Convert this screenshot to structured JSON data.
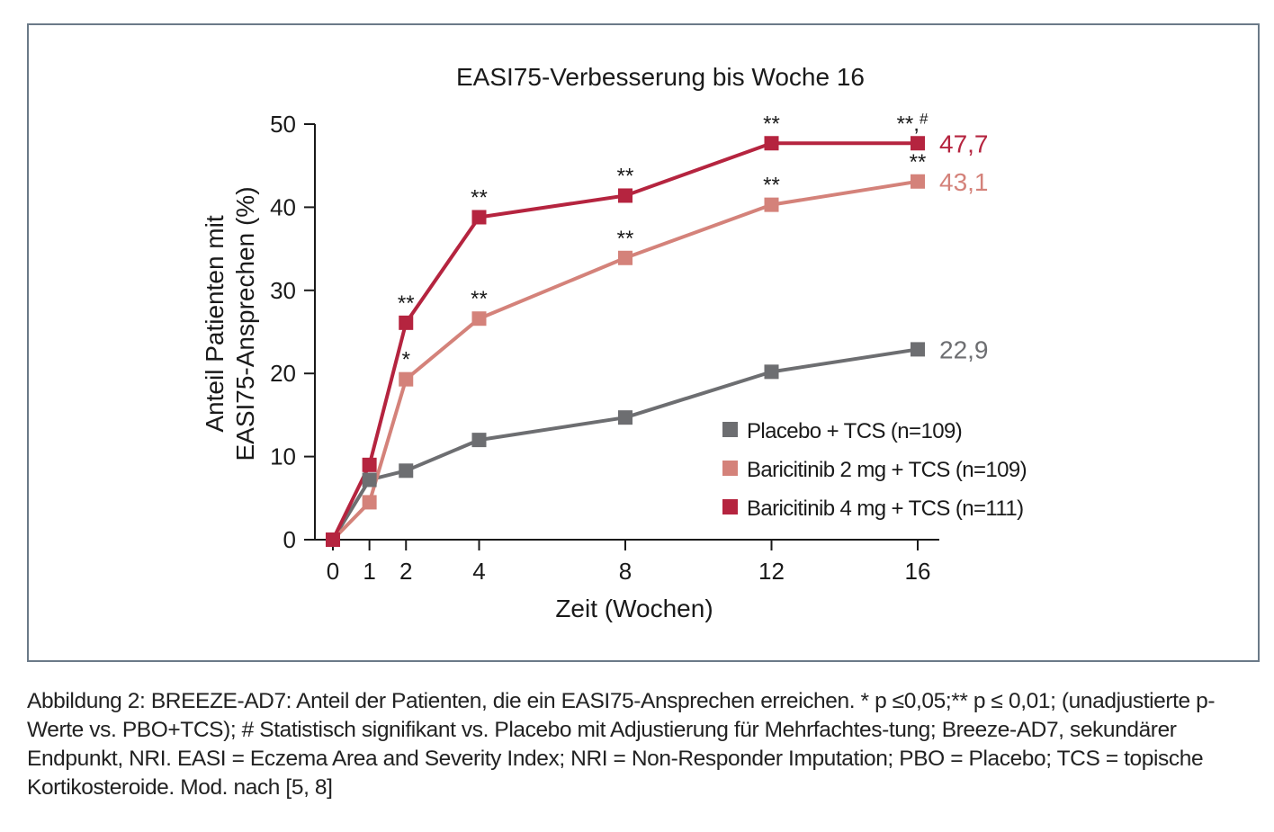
{
  "chart_data": {
    "type": "line",
    "title": "EASI75-Verbesserung bis Woche 16",
    "xlabel": "Zeit (Wochen)",
    "ylabel_lines": [
      "Anteil Patienten mit",
      "EASI75-Ansprechen (%)"
    ],
    "x": [
      0,
      1,
      2,
      4,
      8,
      12,
      16
    ],
    "xticks": [
      "0",
      "1",
      "2",
      "4",
      "8",
      "12",
      "16"
    ],
    "yticks": [
      "0",
      "10",
      "20",
      "30",
      "40",
      "50"
    ],
    "xlim": [
      0,
      16
    ],
    "ylim": [
      0,
      50
    ],
    "series": [
      {
        "name": "Placebo + TCS (n=109)",
        "color": "#6d6e71",
        "values": [
          0,
          7.2,
          8.3,
          12.0,
          14.7,
          20.2,
          22.9
        ],
        "end_label": "22,9",
        "annotations": [
          "",
          "",
          "",
          "",
          "",
          "",
          ""
        ]
      },
      {
        "name": "Baricitinib 2 mg + TCS (n=109)",
        "color": "#d4827a",
        "values": [
          0,
          4.5,
          19.3,
          26.6,
          33.9,
          40.3,
          43.1
        ],
        "end_label": "43,1",
        "annotations": [
          "",
          "",
          "*",
          "**",
          "**",
          "**",
          "**"
        ]
      },
      {
        "name": "Baricitinib 4 mg + TCS (n=111)",
        "color": "#b5243f",
        "values": [
          0,
          9.0,
          26.1,
          38.8,
          41.4,
          47.7,
          47.7
        ],
        "end_label": "47,7",
        "annotations": [
          "",
          "",
          "**",
          "**",
          "**",
          "**",
          "**,#"
        ]
      }
    ],
    "legend_position": "lower-right",
    "grid": false
  },
  "caption": "Abbildung 2: BREEZE-AD7: Anteil der Patienten, die ein EASI75-Ansprechen erreichen. * p ≤0,05;** p ≤ 0,01; (unadjustierte p-Werte vs. PBO+TCS); # Statistisch signifikant vs. Placebo mit Adjustierung für Mehrfachtes-tung; Breeze-AD7, sekundärer Endpunkt, NRI. EASI = Eczema Area and Severity Index; NRI = Non-Responder Imputation; PBO = Placebo; TCS = topische Kortikosteroide. Mod. nach [5, 8]"
}
